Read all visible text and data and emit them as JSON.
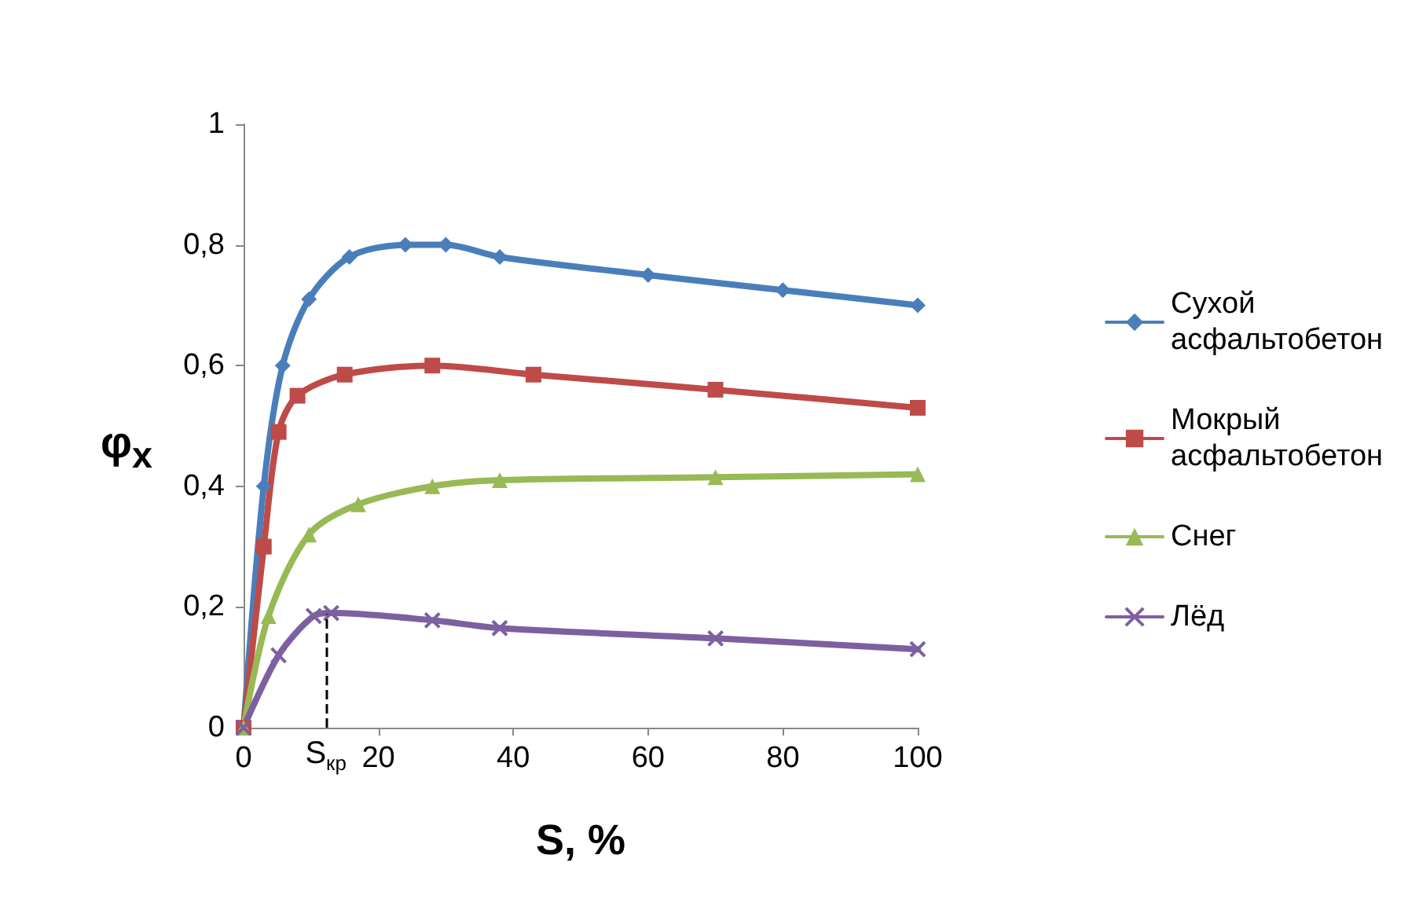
{
  "chart_data": {
    "type": "line",
    "xlabel": "S, %",
    "ylabel": "φ$_{x}$",
    "xlim": [
      0,
      100
    ],
    "xticks": [
      0,
      20,
      40,
      60,
      80,
      100
    ],
    "ylim": [
      0,
      1
    ],
    "yticks": [
      0,
      {
        "value": 0.2,
        "label": "0,2"
      },
      {
        "value": 0.4,
        "label": "0,4"
      },
      {
        "value": 0.6,
        "label": "0,6"
      },
      {
        "value": 0.8,
        "label": "0,8"
      },
      1
    ],
    "grid": false,
    "legend": "right",
    "line_style": "solid",
    "series": [
      {
        "name": "Сухой асфальтобетон",
        "color": "#4a7ebb",
        "marker": "diamond",
        "x": [
          0,
          3,
          5.8,
          9.7,
          15.7,
          24,
          30,
          38,
          60,
          80,
          100
        ],
        "values": [
          0,
          0.4,
          0.6,
          0.71,
          0.78,
          0.8,
          0.8,
          0.78,
          0.75,
          0.725,
          0.7
        ]
      },
      {
        "name": "Мокрый асфальтобетон",
        "color": "#be4b48",
        "marker": "square",
        "x": [
          0,
          3,
          5.2,
          8,
          15,
          28,
          43,
          70,
          100
        ],
        "values": [
          0,
          0.3,
          0.49,
          0.55,
          0.585,
          0.6,
          0.585,
          0.56,
          0.53
        ]
      },
      {
        "name": "Снег",
        "color": "#98b954",
        "marker": "triangle",
        "x": [
          0,
          3.7,
          9.7,
          17,
          28,
          38,
          70,
          100
        ],
        "values": [
          0,
          0.185,
          0.32,
          0.37,
          0.4,
          0.41,
          0.415,
          0.42
        ]
      },
      {
        "name": "Лёд",
        "color": "#7d60a0",
        "marker": "cross",
        "x": [
          0,
          5.2,
          10.4,
          13,
          28,
          38,
          70,
          100
        ],
        "values": [
          0,
          0.12,
          0.185,
          0.19,
          0.178,
          0.165,
          0.148,
          0.13
        ]
      }
    ],
    "ref_lines": [
      {
        "axis": "x",
        "value": 12.2,
        "label": "S$_{кр}$",
        "line_style": "dashed",
        "color": "#000000"
      }
    ]
  }
}
